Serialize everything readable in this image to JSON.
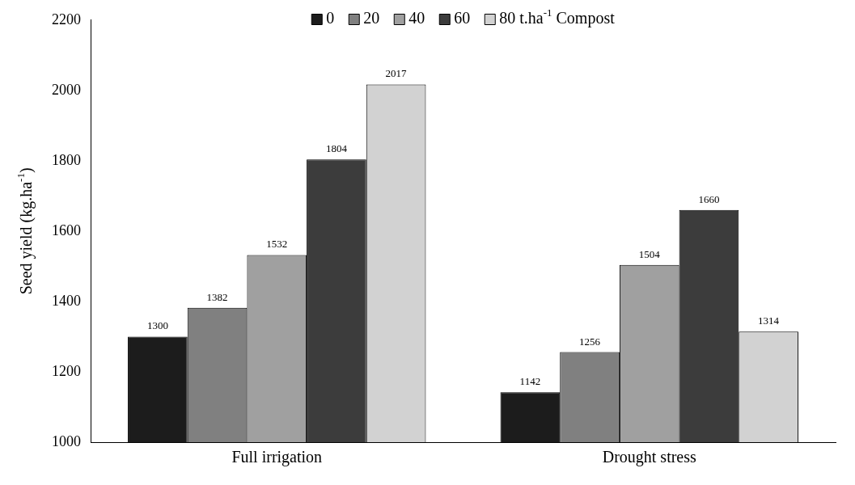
{
  "chart_data": {
    "type": "bar",
    "ylabel": "Seed yield (kg.ha$^{-1}$)",
    "categories": [
      "Full irrigation",
      "Drought stress"
    ],
    "series": [
      {
        "name": "0",
        "color": "#1c1c1c",
        "values": [
          1300,
          1142
        ]
      },
      {
        "name": "20",
        "color": "#808080",
        "values": [
          1382,
          1256
        ]
      },
      {
        "name": "40",
        "color": "#a0a0a0",
        "values": [
          1532,
          1504
        ]
      },
      {
        "name": "60",
        "color": "#3c3c3c",
        "values": [
          1804,
          1660
        ]
      },
      {
        "name": "80 t.ha$^{-1}$ Compost",
        "color": "#d2d2d2",
        "values": [
          2017,
          1314
        ]
      }
    ],
    "ylim": [
      1000,
      2200
    ],
    "yticks": [
      1000,
      1200,
      1400,
      1600,
      1800,
      2000,
      2200
    ],
    "grid": false,
    "legend": "top",
    "data_labels": true
  }
}
